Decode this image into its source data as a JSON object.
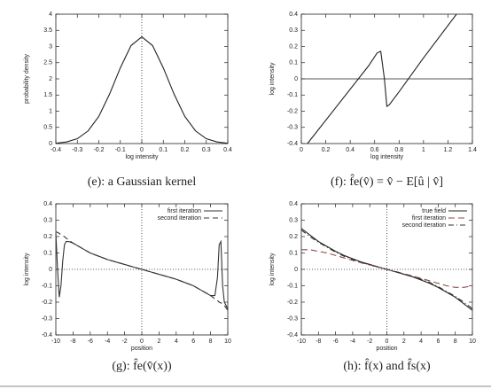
{
  "chart_data": [
    {
      "type": "line",
      "caption": "(e): a Gaussian kernel",
      "xlabel": "log intensity",
      "ylabel": "probability density",
      "x": [
        -0.4,
        -0.35,
        -0.3,
        -0.25,
        -0.2,
        -0.15,
        -0.1,
        -0.05,
        0,
        0.05,
        0.1,
        0.15,
        0.2,
        0.25,
        0.3,
        0.35,
        0.4
      ],
      "series": [
        {
          "color": "#222222",
          "dash": "none",
          "values": [
            0.01,
            0.05,
            0.15,
            0.39,
            0.84,
            1.53,
            2.34,
            3.03,
            3.3,
            3.03,
            2.34,
            1.53,
            0.84,
            0.39,
            0.15,
            0.05,
            0.01
          ]
        }
      ],
      "xlim": [
        -0.4,
        0.4
      ],
      "xticks": [
        -0.4,
        -0.3,
        -0.2,
        -0.1,
        0,
        0.1,
        0.2,
        0.3,
        0.4
      ],
      "ylim": [
        0,
        4
      ],
      "yticks": [
        0,
        0.5,
        1,
        1.5,
        2,
        2.5,
        3,
        3.5,
        4
      ],
      "vline": 0,
      "ref_style": "dotted"
    },
    {
      "type": "line",
      "caption": "(f): f̂e(v̂) = v̂ − E[û | v̂]",
      "xlabel": "log intensity",
      "ylabel": "log intensity",
      "x": [
        0.05,
        0.3,
        0.55,
        0.62,
        0.65,
        0.68,
        0.7,
        0.72,
        0.8,
        1.0,
        1.27
      ],
      "series": [
        {
          "color": "#222222",
          "dash": "none",
          "values": [
            -0.4,
            -0.16,
            0.08,
            0.16,
            0.17,
            0.0,
            -0.17,
            -0.16,
            -0.08,
            0.13,
            0.4
          ]
        }
      ],
      "xlim": [
        0,
        1.4
      ],
      "xticks": [
        0,
        0.2,
        0.4,
        0.6,
        0.8,
        1,
        1.2,
        1.4
      ],
      "ylim": [
        -0.4,
        0.4
      ],
      "yticks": [
        -0.4,
        -0.3,
        -0.2,
        -0.1,
        0,
        0.1,
        0.2,
        0.3,
        0.4
      ],
      "hline": 0,
      "ref_style": "solid"
    },
    {
      "type": "line",
      "caption": "(g): f̂e(v̂(x))",
      "xlabel": "position",
      "ylabel": "log intensity",
      "x": [
        -10,
        -9.8,
        -9.6,
        -9.4,
        -9.2,
        -9,
        -8.8,
        -8.5,
        -8,
        -7,
        -6,
        -5,
        -4,
        -3,
        -2,
        -1,
        0,
        1,
        2,
        3,
        4,
        5,
        6,
        7,
        8,
        8.5,
        8.8,
        9,
        9.2,
        9.4,
        9.6,
        9.8,
        10
      ],
      "series": [
        {
          "name": "first iteration",
          "color": "#333333",
          "dash": "none",
          "values": [
            0.22,
            0.0,
            -0.17,
            -0.1,
            0.05,
            0.15,
            0.17,
            0.17,
            0.16,
            0.13,
            0.1,
            0.08,
            0.06,
            0.045,
            0.03,
            0.015,
            0,
            -0.015,
            -0.03,
            -0.045,
            -0.06,
            -0.08,
            -0.1,
            -0.13,
            -0.16,
            -0.16,
            -0.05,
            0.15,
            0.17,
            -0.1,
            -0.2,
            -0.22,
            -0.24
          ]
        },
        {
          "name": "second iteration",
          "color": "#333333",
          "dash": "6,4",
          "values": [
            0.23,
            0.225,
            0.22,
            0.21,
            0.205,
            0.2,
            0.19,
            0.18,
            0.16,
            0.13,
            0.1,
            0.08,
            0.06,
            0.045,
            0.03,
            0.015,
            0,
            -0.015,
            -0.03,
            -0.045,
            -0.06,
            -0.08,
            -0.1,
            -0.13,
            -0.16,
            -0.18,
            -0.19,
            -0.2,
            -0.205,
            -0.21,
            -0.22,
            -0.235,
            -0.25
          ]
        }
      ],
      "xlim": [
        -10,
        10
      ],
      "xticks": [
        -10,
        -8,
        -6,
        -4,
        -2,
        0,
        2,
        4,
        6,
        8,
        10
      ],
      "ylim": [
        -0.4,
        0.4
      ],
      "yticks": [
        -0.4,
        -0.3,
        -0.2,
        -0.1,
        0,
        0.1,
        0.2,
        0.3,
        0.4
      ],
      "hline": 0,
      "vline": 0,
      "ref_style": "dotted"
    },
    {
      "type": "line",
      "caption": "(h): f̂(x) and f̂s(x)",
      "xlabel": "position",
      "ylabel": "log intensity",
      "x": [
        -10,
        -9,
        -8,
        -7,
        -6,
        -5,
        -4,
        -3,
        -2,
        -1,
        0,
        1,
        2,
        3,
        4,
        5,
        6,
        7,
        8,
        9,
        10
      ],
      "series": [
        {
          "name": "true field",
          "color": "#222222",
          "dash": "none",
          "values": [
            0.25,
            0.21,
            0.17,
            0.14,
            0.11,
            0.085,
            0.065,
            0.045,
            0.03,
            0.015,
            0,
            -0.015,
            -0.03,
            -0.045,
            -0.065,
            -0.085,
            -0.11,
            -0.14,
            -0.17,
            -0.21,
            -0.25
          ]
        },
        {
          "name": "first iteration",
          "color": "#8a4a4a",
          "dash": "7,4",
          "values": [
            0.12,
            0.12,
            0.11,
            0.1,
            0.085,
            0.07,
            0.055,
            0.04,
            0.027,
            0.013,
            0,
            -0.013,
            -0.027,
            -0.04,
            -0.055,
            -0.07,
            -0.085,
            -0.1,
            -0.11,
            -0.11,
            -0.1
          ]
        },
        {
          "name": "second iteration",
          "color": "#333333",
          "dash": "6,3,1,3",
          "values": [
            0.24,
            0.2,
            0.165,
            0.135,
            0.105,
            0.08,
            0.06,
            0.043,
            0.028,
            0.014,
            0,
            -0.014,
            -0.028,
            -0.043,
            -0.06,
            -0.08,
            -0.105,
            -0.135,
            -0.165,
            -0.2,
            -0.24
          ]
        }
      ],
      "xlim": [
        -10,
        10
      ],
      "xticks": [
        -10,
        -8,
        -6,
        -4,
        -2,
        0,
        2,
        4,
        6,
        8,
        10
      ],
      "ylim": [
        -0.4,
        0.4
      ],
      "yticks": [
        -0.4,
        -0.3,
        -0.2,
        -0.1,
        0,
        0.1,
        0.2,
        0.3,
        0.4
      ],
      "hline": 0,
      "vline": 0,
      "ref_style": "dotted"
    }
  ]
}
